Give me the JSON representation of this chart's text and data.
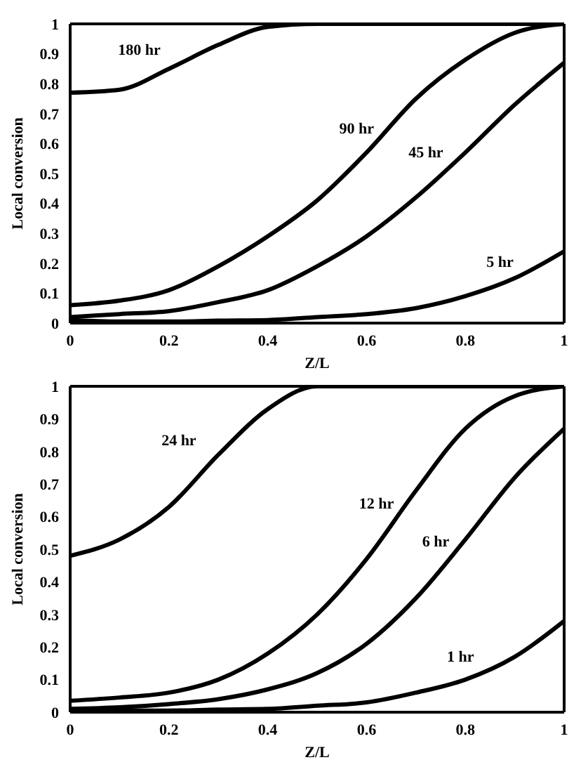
{
  "chart_data": [
    {
      "type": "line",
      "xlabel": "Z/L",
      "ylabel": "Local conversion",
      "x": [
        0,
        0.1,
        0.2,
        0.3,
        0.4,
        0.5,
        0.6,
        0.7,
        0.8,
        0.9,
        1
      ],
      "xlim": [
        0,
        1
      ],
      "ylim": [
        0,
        1
      ],
      "xticks": [
        0,
        0.2,
        0.4,
        0.6,
        0.8,
        1
      ],
      "yticks": [
        0,
        0.1,
        0.2,
        0.3,
        0.4,
        0.5,
        0.6,
        0.7,
        0.8,
        0.9,
        1
      ],
      "grid": false,
      "legend": false,
      "marker": "none",
      "line_style": "solid",
      "series": [
        {
          "name": "180 hr",
          "color": "#000000",
          "values": [
            0.77,
            0.78,
            0.85,
            0.93,
            0.99,
            1,
            1,
            1,
            1,
            1,
            1
          ]
        },
        {
          "name": "90 hr",
          "color": "#000000",
          "values": [
            0.06,
            0.075,
            0.11,
            0.19,
            0.29,
            0.41,
            0.57,
            0.75,
            0.88,
            0.97,
            1
          ]
        },
        {
          "name": "45 hr",
          "color": "#000000",
          "values": [
            0.02,
            0.03,
            0.04,
            0.07,
            0.11,
            0.19,
            0.29,
            0.42,
            0.57,
            0.73,
            0.87
          ]
        },
        {
          "name": "5 hr",
          "color": "#000000",
          "values": [
            0.01,
            0.005,
            0.005,
            0.008,
            0.01,
            0.02,
            0.03,
            0.05,
            0.09,
            0.15,
            0.24
          ]
        }
      ]
    },
    {
      "type": "line",
      "xlabel": "Z/L",
      "ylabel": "Local conversion",
      "x": [
        0,
        0.1,
        0.2,
        0.3,
        0.4,
        0.5,
        0.6,
        0.7,
        0.8,
        0.9,
        1
      ],
      "xlim": [
        0,
        1
      ],
      "ylim": [
        0,
        1
      ],
      "xticks": [
        0,
        0.2,
        0.4,
        0.6,
        0.8,
        1
      ],
      "yticks": [
        0,
        0.1,
        0.2,
        0.3,
        0.4,
        0.5,
        0.6,
        0.7,
        0.8,
        0.9,
        1
      ],
      "grid": false,
      "legend": false,
      "marker": "none",
      "line_style": "solid",
      "series": [
        {
          "name": "24 hr",
          "color": "#000000",
          "values": [
            0.48,
            0.53,
            0.63,
            0.79,
            0.93,
            1,
            1,
            1,
            1,
            1,
            1
          ]
        },
        {
          "name": "12 hr",
          "color": "#000000",
          "values": [
            0.035,
            0.045,
            0.06,
            0.1,
            0.18,
            0.3,
            0.47,
            0.68,
            0.87,
            0.97,
            1
          ]
        },
        {
          "name": "6 hr",
          "color": "#000000",
          "values": [
            0.01,
            0.015,
            0.025,
            0.04,
            0.07,
            0.12,
            0.21,
            0.35,
            0.53,
            0.72,
            0.87
          ]
        },
        {
          "name": "1 hr",
          "color": "#000000",
          "values": [
            0.005,
            0.005,
            0.005,
            0.008,
            0.01,
            0.02,
            0.03,
            0.06,
            0.1,
            0.17,
            0.28
          ]
        }
      ]
    }
  ]
}
